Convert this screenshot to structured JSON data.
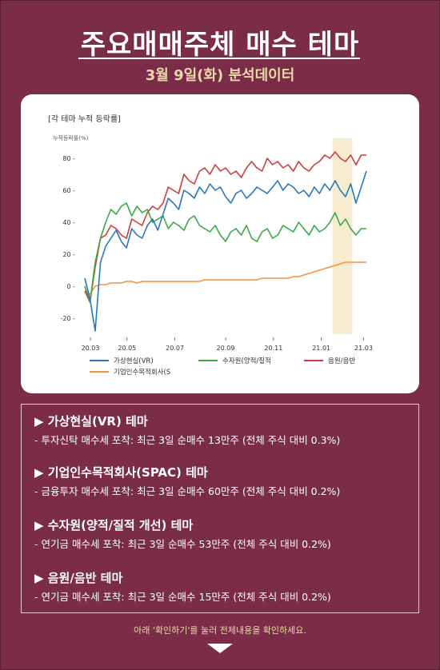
{
  "header": {
    "title": "주요매매주체 매수 테마",
    "subtitle": "3월 9일(화) 분석데이터"
  },
  "chart_card": {
    "title": "[각 테마 누적 등락률]",
    "unit": "누적등락률(%)"
  },
  "chart_data": {
    "type": "line",
    "ylabel": "누적등락률(%)",
    "ylim": [
      -30,
      90
    ],
    "yticks": [
      "80 -",
      "60 -",
      "40 -",
      "20 -",
      "0 -",
      "-20 -"
    ],
    "ytick_values": [
      80,
      60,
      40,
      20,
      0,
      -20
    ],
    "xticks": [
      "20.03",
      "20.05",
      "20.07",
      "20.09",
      "20.11",
      "21.01",
      "21.03"
    ],
    "highlight_range": [
      0.88,
      0.95
    ],
    "series": [
      {
        "name": "가상현실(VR)",
        "color": "#2b77b8",
        "values": [
          5,
          -8,
          -28,
          15,
          25,
          30,
          35,
          28,
          24,
          36,
          32,
          30,
          38,
          42,
          35,
          45,
          55,
          52,
          48,
          60,
          58,
          55,
          62,
          58,
          64,
          60,
          62,
          56,
          52,
          58,
          60,
          55,
          58,
          62,
          60,
          58,
          62,
          66,
          60,
          64,
          62,
          58,
          60,
          56,
          62,
          58,
          64,
          60,
          66,
          60,
          56,
          64,
          52,
          62,
          72
        ]
      },
      {
        "name": "수자원(양적/질적",
        "color": "#3aa845",
        "values": [
          0,
          -10,
          15,
          30,
          40,
          48,
          45,
          50,
          52,
          44,
          50,
          46,
          48,
          40,
          42,
          44,
          36,
          40,
          38,
          35,
          42,
          44,
          38,
          36,
          34,
          38,
          32,
          28,
          34,
          36,
          32,
          38,
          30,
          28,
          34,
          36,
          30,
          32,
          38,
          36,
          34,
          40,
          36,
          32,
          38,
          34,
          36,
          40,
          46,
          38,
          42,
          36,
          32,
          36,
          36
        ]
      },
      {
        "name": "음원/음반",
        "color": "#d03c3c",
        "values": [
          -3,
          -10,
          12,
          30,
          32,
          38,
          36,
          32,
          30,
          42,
          40,
          38,
          46,
          50,
          48,
          52,
          62,
          60,
          58,
          70,
          66,
          64,
          72,
          74,
          70,
          76,
          72,
          74,
          70,
          72,
          68,
          74,
          78,
          74,
          72,
          80,
          76,
          78,
          74,
          76,
          72,
          78,
          74,
          72,
          76,
          78,
          82,
          80,
          84,
          80,
          78,
          82,
          76,
          82,
          82
        ]
      },
      {
        "name": "기업인수목적회사(S",
        "color": "#f5923e",
        "values": [
          -3,
          -5,
          0,
          1,
          1,
          2,
          2,
          2,
          3,
          3,
          2,
          3,
          3,
          3,
          3,
          3,
          3,
          3,
          3,
          3,
          3,
          3,
          3,
          4,
          4,
          4,
          4,
          4,
          4,
          4,
          4,
          4,
          4,
          4,
          5,
          5,
          5,
          5,
          5,
          5,
          6,
          6,
          7,
          8,
          9,
          10,
          11,
          12,
          13,
          14,
          15,
          15,
          15,
          15,
          15
        ]
      }
    ]
  },
  "themes": [
    {
      "title": "▶ 가상현실(VR) 테마",
      "desc": "- 투자신탁 매수세 포착: 최근 3일 순매수 13만주 (전체 주식 대비 0.3%)"
    },
    {
      "title": "▶ 기업인수목적회사(SPAC) 테마",
      "desc": "- 금융투자 매수세 포착: 최근 3일 순매수 60만주 (전체 주식 대비 0.2%)"
    },
    {
      "title": "▶ 수자원(양적/질적 개선) 테마",
      "desc": "- 연기금 매수세 포착: 최근 3일 순매수 53만주 (전체 주식 대비 0.2%)"
    },
    {
      "title": "▶ 음원/음반 테마",
      "desc": "- 연기금 매수세 포착: 최근 3일 순매수 15만주 (전체 주식 대비 0.2%)"
    }
  ],
  "footer": {
    "text": "아래 '확인하기'를 눌러 전체내용을 확인하세요."
  }
}
